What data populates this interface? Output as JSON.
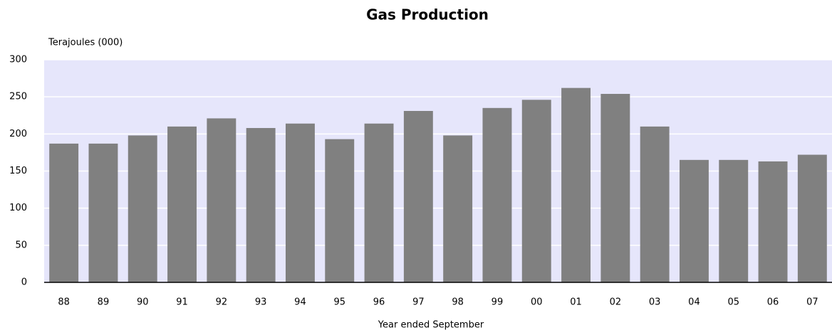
{
  "chart_data": {
    "type": "bar",
    "title": "Gas Production",
    "y_label": "Terajoules (000)",
    "x_label": "Year ended September",
    "categories": [
      "88",
      "89",
      "90",
      "91",
      "92",
      "93",
      "94",
      "95",
      "96",
      "97",
      "98",
      "99",
      "00",
      "01",
      "02",
      "03",
      "04",
      "05",
      "06",
      "07"
    ],
    "values": [
      187,
      187,
      198,
      210,
      221,
      208,
      214,
      193,
      214,
      231,
      198,
      235,
      246,
      262,
      254,
      210,
      165,
      165,
      163,
      172
    ],
    "color": "#808080",
    "ylim": [
      0,
      300
    ],
    "yticks": [
      0,
      50,
      100,
      150,
      200,
      250,
      300
    ],
    "grid": true
  }
}
